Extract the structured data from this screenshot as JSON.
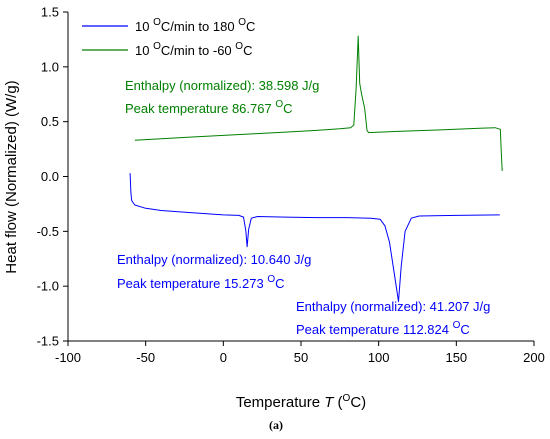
{
  "chart_data": {
    "type": "line",
    "xlabel": {
      "prefix": "Temperature ",
      "var": "T",
      "open": " (",
      "sup": "O",
      "unit": "C)"
    },
    "ylabel": "Heat flow (Normalized) (W/g)",
    "xlim": [
      -100,
      200
    ],
    "ylim": [
      -1.5,
      1.5
    ],
    "xticks": [
      "-100",
      "-50",
      "0",
      "50",
      "100",
      "150",
      "200"
    ],
    "yticks": [
      "-1.5",
      "-1.0",
      "-0.5",
      "0.0",
      "0.5",
      "1.0",
      "1.5"
    ],
    "legend": [
      {
        "name": "heating",
        "pre": "10 ",
        "sup1": "O",
        "mid": "C/min to 180 ",
        "sup2": "O",
        "post": "C"
      },
      {
        "name": "cooling",
        "pre": "10 ",
        "sup1": "O",
        "mid": "C/min to -60 ",
        "sup2": "O",
        "post": "C"
      }
    ],
    "series": [
      {
        "name": "10 OC/min to 180 OC",
        "color": "#0000ff",
        "points": [
          [
            -60,
            0.03
          ],
          [
            -59.5,
            -0.15
          ],
          [
            -59,
            -0.22
          ],
          [
            -57,
            -0.26
          ],
          [
            -50,
            -0.29
          ],
          [
            -40,
            -0.31
          ],
          [
            -20,
            -0.33
          ],
          [
            0,
            -0.35
          ],
          [
            10,
            -0.355
          ],
          [
            13,
            -0.37
          ],
          [
            14.5,
            -0.5
          ],
          [
            15.3,
            -0.64
          ],
          [
            16.3,
            -0.48
          ],
          [
            18,
            -0.38
          ],
          [
            22,
            -0.365
          ],
          [
            40,
            -0.37
          ],
          [
            60,
            -0.375
          ],
          [
            80,
            -0.375
          ],
          [
            95,
            -0.38
          ],
          [
            101,
            -0.39
          ],
          [
            104,
            -0.45
          ],
          [
            107,
            -0.6
          ],
          [
            110,
            -0.88
          ],
          [
            112.8,
            -1.14
          ],
          [
            114.5,
            -0.82
          ],
          [
            117,
            -0.5
          ],
          [
            121,
            -0.38
          ],
          [
            126,
            -0.36
          ],
          [
            150,
            -0.355
          ],
          [
            178,
            -0.35
          ]
        ]
      },
      {
        "name": "10 OC/min to -60 OC",
        "color": "#008000",
        "points": [
          [
            -57,
            0.33
          ],
          [
            -40,
            0.345
          ],
          [
            -20,
            0.36
          ],
          [
            0,
            0.375
          ],
          [
            20,
            0.39
          ],
          [
            40,
            0.405
          ],
          [
            60,
            0.42
          ],
          [
            75,
            0.435
          ],
          [
            82,
            0.445
          ],
          [
            84,
            0.47
          ],
          [
            85.5,
            0.8
          ],
          [
            86.8,
            1.28
          ],
          [
            87.8,
            0.85
          ],
          [
            89,
            0.75
          ],
          [
            91,
            0.62
          ],
          [
            92.5,
            0.42
          ],
          [
            93.5,
            0.4
          ],
          [
            110,
            0.41
          ],
          [
            140,
            0.425
          ],
          [
            165,
            0.44
          ],
          [
            175,
            0.445
          ],
          [
            178.3,
            0.43
          ],
          [
            179,
            0.2
          ],
          [
            179.5,
            0.05
          ]
        ]
      }
    ],
    "annotations": [
      {
        "name": "green-enthalpy",
        "color": "#008000",
        "text": "Enthalpy (normalized): 38.598 J/g"
      },
      {
        "name": "green-peak",
        "color": "#008000",
        "pre": "Peak temperature 86.767 ",
        "sup": "O",
        "post": "C"
      },
      {
        "name": "blue1-enthalpy",
        "color": "#0000ff",
        "text": "Enthalpy (normalized): 10.640 J/g"
      },
      {
        "name": "blue1-peak",
        "color": "#0000ff",
        "text": "Peak temperature 15.273 ",
        "pre": "Peak temperature 15.273 ",
        "sup": "O",
        "post": "C"
      },
      {
        "name": "blue2-enthalpy",
        "color": "#0000ff",
        "text": "Enthalpy (normalized): 41.207 J/g"
      },
      {
        "name": "blue2-peak",
        "color": "#0000ff",
        "pre": "Peak temperature 112.824 ",
        "sup": "O",
        "post": "C"
      }
    ]
  },
  "caption": "(a)"
}
